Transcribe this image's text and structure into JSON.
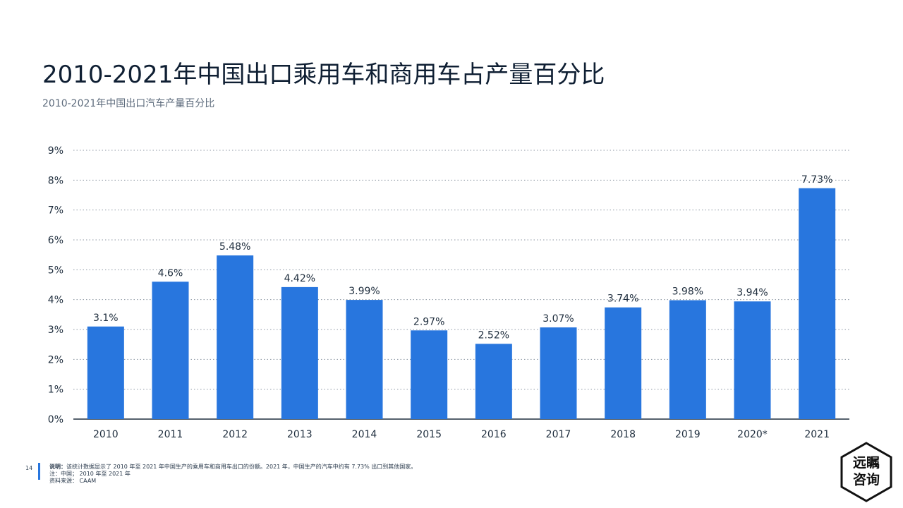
{
  "header": {
    "title": "2010-2021年中国出口乘用车和商用车占产量百分比",
    "subtitle": "2010-2021年中国出口汽车产量百分比"
  },
  "chart_data": {
    "type": "bar",
    "title": "",
    "xlabel": "",
    "ylabel": "",
    "categories": [
      "2010",
      "2011",
      "2012",
      "2013",
      "2014",
      "2015",
      "2016",
      "2017",
      "2018",
      "2019",
      "2020*",
      "2021"
    ],
    "values": [
      3.1,
      4.6,
      5.48,
      4.42,
      3.99,
      2.97,
      2.52,
      3.07,
      3.74,
      3.98,
      3.94,
      7.73
    ],
    "value_labels": [
      "3.1%",
      "4.6%",
      "5.48%",
      "4.42%",
      "3.99%",
      "2.97%",
      "2.52%",
      "3.07%",
      "3.74%",
      "3.98%",
      "3.94%",
      "7.73%"
    ],
    "ylim": [
      0,
      9
    ],
    "y_ticks": [
      0,
      1,
      2,
      3,
      4,
      5,
      6,
      7,
      8,
      9
    ],
    "y_tick_labels": [
      "0%",
      "1%",
      "2%",
      "3%",
      "4%",
      "5%",
      "6%",
      "7%",
      "8%",
      "9%"
    ],
    "grid": true,
    "bar_color": "#2876de"
  },
  "footer": {
    "page_number": "14",
    "notes_prefix": "说明：",
    "notes": "该统计数据显示了 2010 年至 2021 年中国生产的乘用车和商用车出口的份额。2021 年，中国生产的汽车中约有 7.73% 出口到其他国家。",
    "note2": "注：中国； 2010 年至 2021 年",
    "source": "资料来源： CAAM"
  },
  "logo": {
    "line1": "远瞩",
    "line2": "咨询"
  }
}
